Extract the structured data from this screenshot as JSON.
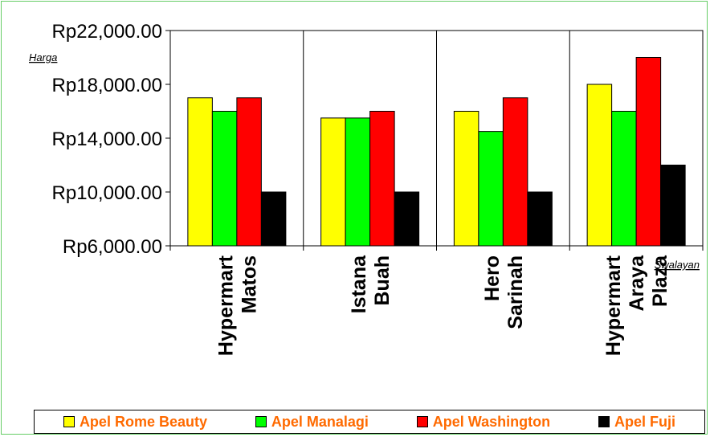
{
  "chart_data": {
    "type": "bar",
    "ylabel": "Harga",
    "xlabel": "Swalayan",
    "ylim": [
      6000,
      22000
    ],
    "yticks": [
      6000,
      10000,
      14000,
      18000,
      22000
    ],
    "ytick_labels": [
      "Rp6,000.00",
      "Rp10,000.00",
      "Rp14,000.00",
      "Rp18,000.00",
      "Rp22,000.00"
    ],
    "categories": [
      [
        "Hypermart",
        "Matos"
      ],
      [
        "Istana",
        "Buah"
      ],
      [
        "Hero",
        "Sarinah"
      ],
      [
        "Hypermart",
        "Araya",
        "Plaza"
      ]
    ],
    "series": [
      {
        "name": "Apel Rome Beauty",
        "color": "#ffff00",
        "values": [
          17000,
          15500,
          16000,
          18000
        ]
      },
      {
        "name": "Apel Manalagi",
        "color": "#00ff00",
        "values": [
          16000,
          15500,
          14500,
          16000
        ]
      },
      {
        "name": "Apel Washington",
        "color": "#ff0000",
        "values": [
          17000,
          16000,
          17000,
          20000
        ]
      },
      {
        "name": "Apel Fuji",
        "color": "#000000",
        "values": [
          10000,
          10000,
          10000,
          12000
        ]
      }
    ],
    "grid": "vertical-category-separators",
    "legend": "bottom"
  }
}
